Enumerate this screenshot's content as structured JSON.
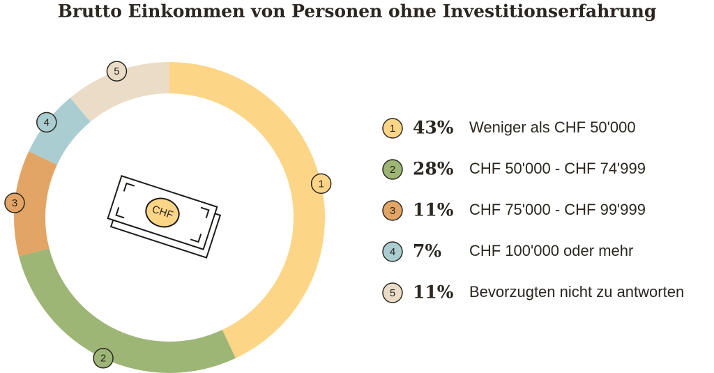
{
  "chart_data": {
    "type": "donut",
    "title": "Brutto Einkommen von Personen ohne Investitionserfahrung",
    "categories": [
      "Weniger als CHF 50'000",
      "CHF 50'000 - CHF 74'999",
      "CHF 75'000 - CHF 99'999",
      "CHF 100'000 oder mehr",
      "Bevorzugten nicht zu antworten"
    ],
    "markers": [
      "1",
      "2",
      "3",
      "4",
      "5"
    ],
    "values": [
      43,
      28,
      11,
      7,
      11
    ],
    "value_labels": [
      "43%",
      "28%",
      "11%",
      "7%",
      "11%"
    ],
    "colors": [
      "#fdd587",
      "#9db676",
      "#e2a565",
      "#a9cdd1",
      "#eadcc7"
    ],
    "icon_label": "CHF"
  }
}
